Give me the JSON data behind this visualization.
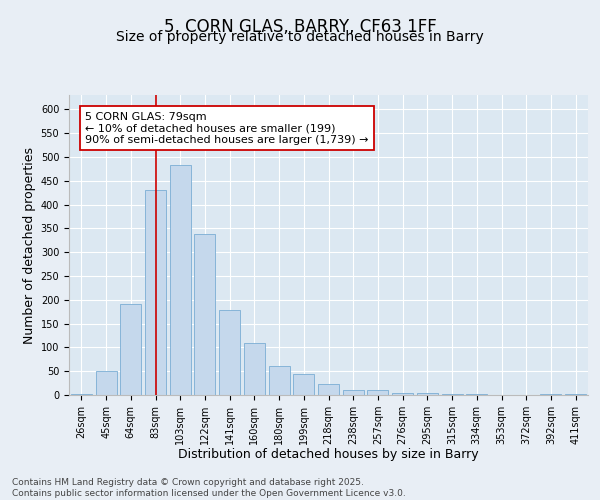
{
  "title": "5, CORN GLAS, BARRY, CF63 1FF",
  "subtitle": "Size of property relative to detached houses in Barry",
  "xlabel": "Distribution of detached houses by size in Barry",
  "ylabel": "Number of detached properties",
  "categories": [
    "26sqm",
    "45sqm",
    "64sqm",
    "83sqm",
    "103sqm",
    "122sqm",
    "141sqm",
    "160sqm",
    "180sqm",
    "199sqm",
    "218sqm",
    "238sqm",
    "257sqm",
    "276sqm",
    "295sqm",
    "315sqm",
    "334sqm",
    "353sqm",
    "372sqm",
    "392sqm",
    "411sqm"
  ],
  "values": [
    3,
    50,
    192,
    430,
    483,
    338,
    178,
    110,
    61,
    44,
    23,
    10,
    10,
    5,
    4,
    3,
    2,
    1,
    1,
    3,
    2
  ],
  "bar_color": "#c5d8ec",
  "bar_edge_color": "#7aadd4",
  "vline_index": 3,
  "vline_color": "#cc0000",
  "annotation_text": "5 CORN GLAS: 79sqm\n← 10% of detached houses are smaller (199)\n90% of semi-detached houses are larger (1,739) →",
  "annotation_box_facecolor": "#ffffff",
  "annotation_box_edgecolor": "#cc0000",
  "ylim": [
    0,
    630
  ],
  "yticks": [
    0,
    50,
    100,
    150,
    200,
    250,
    300,
    350,
    400,
    450,
    500,
    550,
    600
  ],
  "fig_background_color": "#e8eef5",
  "plot_background_color": "#dce8f2",
  "grid_color": "#ffffff",
  "footer_text": "Contains HM Land Registry data © Crown copyright and database right 2025.\nContains public sector information licensed under the Open Government Licence v3.0.",
  "title_fontsize": 12,
  "subtitle_fontsize": 10,
  "axis_label_fontsize": 9,
  "tick_fontsize": 7,
  "annotation_fontsize": 8,
  "footer_fontsize": 6.5
}
